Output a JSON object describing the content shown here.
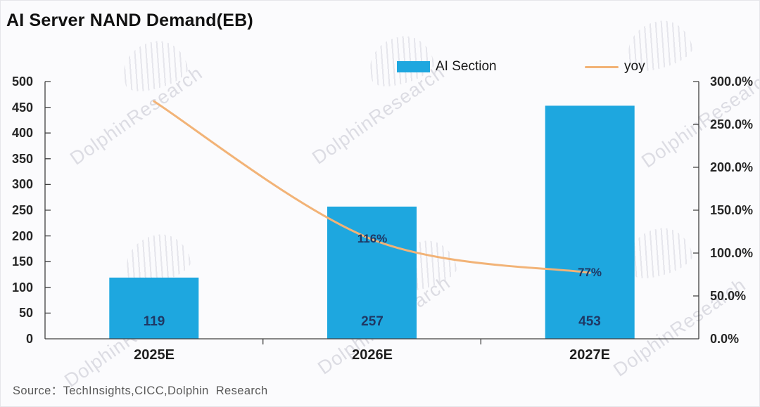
{
  "title": "AI Server NAND Demand(EB)",
  "source": "Source：TechInsights,CICC,Dolphin  Research",
  "watermark_text": "DolphinResearch",
  "legend": {
    "bar_label": "AI Section",
    "line_label": "yoy"
  },
  "colors": {
    "bar": "#1ea7df",
    "line": "#f2b377",
    "value_label": "#1f3864",
    "axis": "#404040",
    "watermark": "#dcdce3"
  },
  "chart_data": {
    "type": "bar",
    "title": "AI Server NAND Demand(EB)",
    "categories": [
      "2025E",
      "2026E",
      "2027E"
    ],
    "series": [
      {
        "name": "AI Section",
        "type": "bar",
        "axis": "left",
        "values": [
          119,
          257,
          453
        ],
        "data_labels": [
          "119",
          "257",
          "453"
        ],
        "color": "#1ea7df"
      },
      {
        "name": "yoy",
        "type": "line",
        "axis": "right",
        "unit": "percent",
        "values": [
          277,
          116,
          77
        ],
        "data_labels": [
          "",
          "116%",
          "77%"
        ],
        "color": "#f2b377"
      }
    ],
    "left_axis": {
      "min": 0,
      "max": 500,
      "step": 50,
      "tick_labels": [
        "500",
        "450",
        "400",
        "350",
        "300",
        "250",
        "200",
        "150",
        "100",
        "50",
        "0"
      ]
    },
    "right_axis": {
      "min": 0,
      "max": 300,
      "step": 50,
      "tick_labels": [
        "300.0%",
        "250.0%",
        "200.0%",
        "150.0%",
        "100.0%",
        "50.0%",
        "0.0%"
      ]
    },
    "legend_position": "top",
    "gridlines": false
  }
}
